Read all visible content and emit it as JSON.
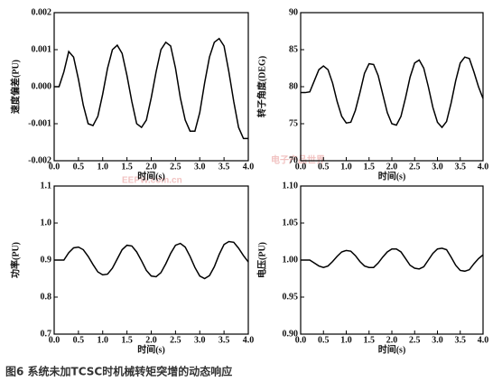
{
  "caption": "图6  系统未加TCSC时机械转矩突增的动态响应",
  "watermark": [
    "电子产品世界",
    "EEPW.com.cn"
  ],
  "chart_data": [
    {
      "type": "line",
      "y_label": "速度偏差(PU)",
      "x_label": "时间(s)",
      "color": "#000000",
      "x": [
        0,
        0.1,
        0.2,
        0.3,
        0.4,
        0.5,
        0.6,
        0.7,
        0.8,
        0.9,
        1,
        1.1,
        1.2,
        1.3,
        1.4,
        1.5,
        1.6,
        1.7,
        1.8,
        1.9,
        2,
        2.1,
        2.2,
        2.3,
        2.4,
        2.5,
        2.6,
        2.7,
        2.8,
        2.9,
        3,
        3.1,
        3.2,
        3.3,
        3.4,
        3.5,
        3.6,
        3.7,
        3.8,
        3.9,
        4
      ],
      "values": [
        0,
        0,
        0.0004,
        0.00095,
        0.0008,
        0.0002,
        -0.0005,
        -0.001,
        -0.00105,
        -0.0008,
        -0.0002,
        0.0005,
        0.001,
        0.00112,
        0.0009,
        0.0003,
        -0.0004,
        -0.001,
        -0.0011,
        -0.0009,
        -0.0003,
        0.0004,
        0.001,
        0.0012,
        0.0011,
        0.0005,
        -0.0003,
        -0.0009,
        -0.0012,
        -0.0012,
        -0.0007,
        0.0001,
        0.0008,
        0.0012,
        0.0013,
        0.0011,
        0.0004,
        -0.0004,
        -0.0011,
        -0.0014,
        -0.0014
      ],
      "xlim": [
        0,
        4
      ],
      "xticks": [
        {
          "value": 0,
          "label": "0.0"
        },
        0.5,
        {
          "value": 1,
          "label": "1.0"
        },
        1.5,
        {
          "value": 2,
          "label": "2.0"
        },
        2.5,
        {
          "value": 3,
          "label": "3.0"
        },
        3.5,
        {
          "value": 4,
          "label": "4.0"
        }
      ],
      "ylim": [
        -0.002,
        0.002
      ],
      "yticks": [
        -0.002,
        -0.001,
        {
          "value": 0,
          "label": "0.000"
        },
        0.001,
        0.002
      ]
    },
    {
      "type": "line",
      "y_label": "转子角度(DEG)",
      "x_label": "时间(s)",
      "color": "#000000",
      "x": [
        0,
        0.1,
        0.2,
        0.3,
        0.4,
        0.5,
        0.6,
        0.7,
        0.8,
        0.9,
        1,
        1.1,
        1.2,
        1.3,
        1.4,
        1.5,
        1.6,
        1.7,
        1.8,
        1.9,
        2,
        2.1,
        2.2,
        2.3,
        2.4,
        2.5,
        2.6,
        2.7,
        2.8,
        2.9,
        3,
        3.1,
        3.2,
        3.3,
        3.4,
        3.5,
        3.6,
        3.7,
        3.8,
        3.9,
        4
      ],
      "values": [
        79.2,
        79.2,
        79.3,
        80.8,
        82.3,
        82.8,
        82.3,
        80.5,
        78,
        76,
        75.1,
        75.2,
        76.8,
        79.2,
        81.8,
        83.1,
        83,
        81.5,
        79,
        76.5,
        75,
        74.8,
        76,
        78.5,
        81.3,
        83.2,
        83.6,
        82.5,
        80,
        77.2,
        75.2,
        74.5,
        75.3,
        77.8,
        80.8,
        83.2,
        84,
        83.8,
        82,
        80,
        78.4
      ],
      "xlim": [
        0,
        4
      ],
      "xticks": [
        {
          "value": 0,
          "label": "0.0"
        },
        0.5,
        {
          "value": 1,
          "label": "1.0"
        },
        1.5,
        {
          "value": 2,
          "label": "2.0"
        },
        2.5,
        {
          "value": 3,
          "label": "3.0"
        },
        3.5,
        {
          "value": 4,
          "label": "4.0"
        }
      ],
      "ylim": [
        70,
        90
      ],
      "yticks": [
        70,
        75,
        80,
        85,
        90
      ]
    },
    {
      "type": "line",
      "y_label": "功率(PU)",
      "x_label": "时间(s)",
      "color": "#000000",
      "x": [
        0,
        0.1,
        0.2,
        0.3,
        0.4,
        0.5,
        0.6,
        0.7,
        0.8,
        0.9,
        1,
        1.1,
        1.2,
        1.3,
        1.4,
        1.5,
        1.6,
        1.7,
        1.8,
        1.9,
        2,
        2.1,
        2.2,
        2.3,
        2.4,
        2.5,
        2.6,
        2.7,
        2.8,
        2.9,
        3,
        3.1,
        3.2,
        3.3,
        3.4,
        3.5,
        3.6,
        3.7,
        3.8,
        3.9,
        4
      ],
      "values": [
        0.9,
        0.9,
        0.9,
        0.92,
        0.933,
        0.935,
        0.928,
        0.91,
        0.888,
        0.868,
        0.86,
        0.862,
        0.878,
        0.903,
        0.928,
        0.94,
        0.938,
        0.922,
        0.898,
        0.872,
        0.857,
        0.855,
        0.866,
        0.89,
        0.918,
        0.94,
        0.945,
        0.935,
        0.91,
        0.88,
        0.857,
        0.85,
        0.858,
        0.882,
        0.915,
        0.942,
        0.95,
        0.948,
        0.932,
        0.912,
        0.895
      ],
      "xlim": [
        0,
        4
      ],
      "xticks": [
        {
          "value": 0,
          "label": "0.0"
        },
        0.5,
        {
          "value": 1,
          "label": "1.0"
        },
        1.5,
        {
          "value": 2,
          "label": "2.0"
        },
        2.5,
        {
          "value": 3,
          "label": "3.0"
        },
        3.5,
        {
          "value": 4,
          "label": "4.0"
        }
      ],
      "ylim": [
        0.7,
        1.1
      ],
      "yticks": [
        0.7,
        0.8,
        0.9,
        {
          "value": 1,
          "label": "1.0"
        },
        1.1
      ]
    },
    {
      "type": "line",
      "y_label": "电压(PU)",
      "x_label": "时间(s)",
      "color": "#000000",
      "x": [
        0,
        0.1,
        0.2,
        0.3,
        0.4,
        0.5,
        0.6,
        0.7,
        0.8,
        0.9,
        1,
        1.1,
        1.2,
        1.3,
        1.4,
        1.5,
        1.6,
        1.7,
        1.8,
        1.9,
        2,
        2.1,
        2.2,
        2.3,
        2.4,
        2.5,
        2.6,
        2.7,
        2.8,
        2.9,
        3,
        3.1,
        3.2,
        3.3,
        3.4,
        3.5,
        3.6,
        3.7,
        3.8,
        3.9,
        4
      ],
      "values": [
        1,
        1,
        1,
        0.996,
        0.992,
        0.99,
        0.992,
        0.998,
        1.005,
        1.011,
        1.013,
        1.012,
        1.006,
        0.998,
        0.992,
        0.99,
        0.99,
        0.996,
        1.004,
        1.011,
        1.015,
        1.015,
        1.011,
        1.002,
        0.993,
        0.989,
        0.988,
        0.991,
        1,
        1.009,
        1.015,
        1.016,
        1.014,
        1.004,
        0.993,
        0.986,
        0.985,
        0.987,
        0.995,
        1.002,
        1.007
      ],
      "xlim": [
        0,
        4
      ],
      "xticks": [
        {
          "value": 0,
          "label": "0.0"
        },
        0.5,
        {
          "value": 1,
          "label": "1.0"
        },
        1.5,
        {
          "value": 2,
          "label": "2.0"
        },
        2.5,
        {
          "value": 3,
          "label": "3.0"
        },
        3.5,
        {
          "value": 4,
          "label": "4.0"
        }
      ],
      "ylim": [
        0.9,
        1.1
      ],
      "yticks": [
        {
          "value": 0.9,
          "label": "0.90"
        },
        {
          "value": 0.95,
          "label": "0.95"
        },
        {
          "value": 1,
          "label": "1.00"
        },
        {
          "value": 1.05,
          "label": "1.05"
        },
        {
          "value": 1.1,
          "label": "1.10"
        }
      ]
    }
  ]
}
